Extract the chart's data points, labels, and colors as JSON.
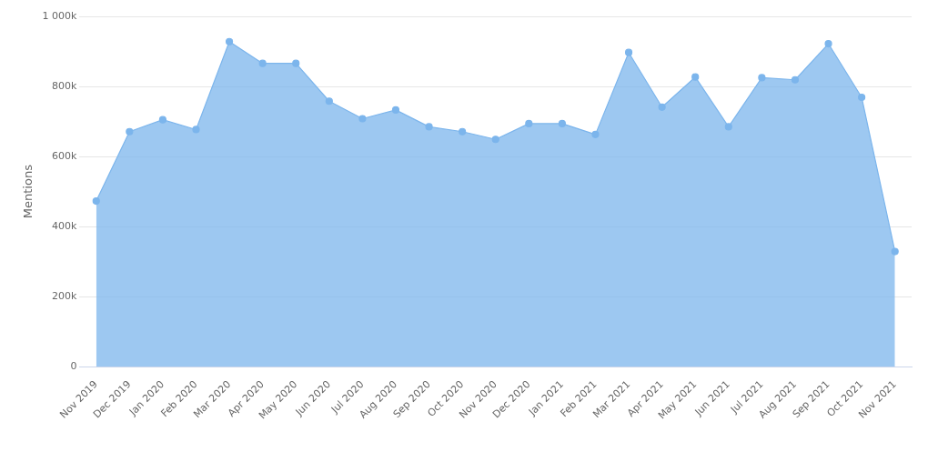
{
  "chart_data": {
    "type": "area",
    "ylabel": "Mentions",
    "categories": [
      "Nov 2019",
      "Dec 2019",
      "Jan 2020",
      "Feb 2020",
      "Mar 2020",
      "Apr 2020",
      "May 2020",
      "Jun 2020",
      "Jul 2020",
      "Aug 2020",
      "Sep 2020",
      "Oct 2020",
      "Nov 2020",
      "Dec 2020",
      "Jan 2021",
      "Feb 2021",
      "Mar 2021",
      "Apr 2021",
      "May 2021",
      "Jun 2021",
      "Jul 2021",
      "Aug 2021",
      "Sep 2021",
      "Oct 2021",
      "Nov 2021"
    ],
    "series": [
      {
        "color": "#7cb5ec",
        "values": [
          473000,
          671000,
          705000,
          677000,
          928000,
          866000,
          866000,
          758000,
          708000,
          733000,
          685000,
          671000,
          649000,
          694000,
          694000,
          663000,
          897000,
          741000,
          827000,
          685000,
          825000,
          819000,
          922000,
          769000,
          329000
        ]
      }
    ],
    "ylim": [
      0,
      1000000
    ],
    "yticks": [
      0,
      {
        "value": 200000,
        "label": "200k"
      },
      {
        "value": 400000,
        "label": "400k"
      },
      {
        "value": 600000,
        "label": "600k"
      },
      {
        "value": 800000,
        "label": "800k"
      },
      {
        "value": 1000000,
        "label": "1 000k"
      }
    ],
    "grid": "y",
    "legend": false,
    "marker": "circle",
    "line_style": "solid"
  }
}
